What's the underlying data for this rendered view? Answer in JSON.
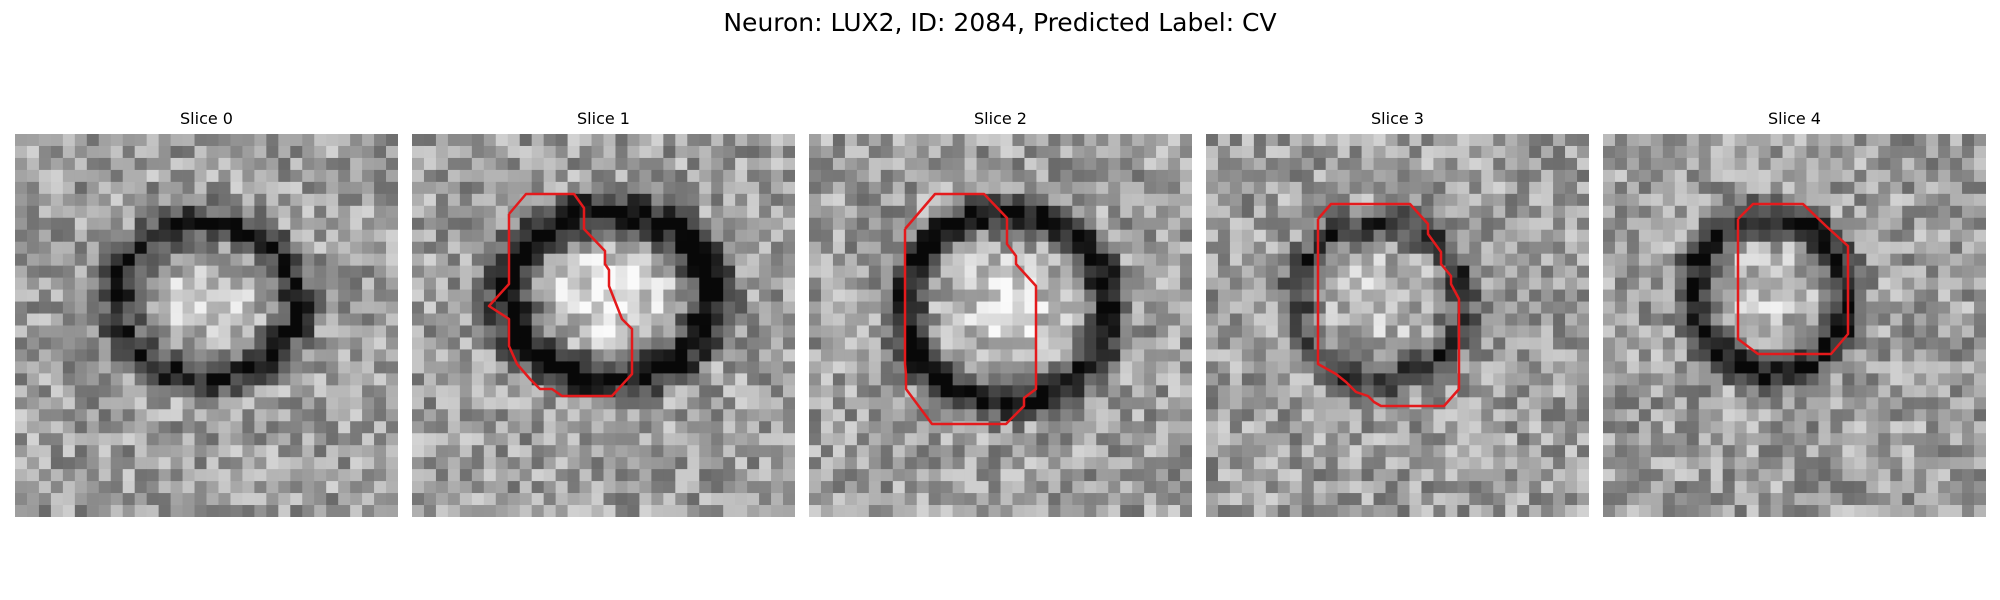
{
  "figure": {
    "title": "Neuron: LUX2, ID: 2084, Predicted Label: CV"
  },
  "colors": {
    "contour": "#e41a1c",
    "background": "#ffffff"
  },
  "panels": [
    {
      "title": "Slice 0",
      "has_contour": false
    },
    {
      "title": "Slice 1",
      "has_contour": true
    },
    {
      "title": "Slice 2",
      "has_contour": true
    },
    {
      "title": "Slice 3",
      "has_contour": true
    },
    {
      "title": "Slice 4",
      "has_contour": true
    }
  ]
}
